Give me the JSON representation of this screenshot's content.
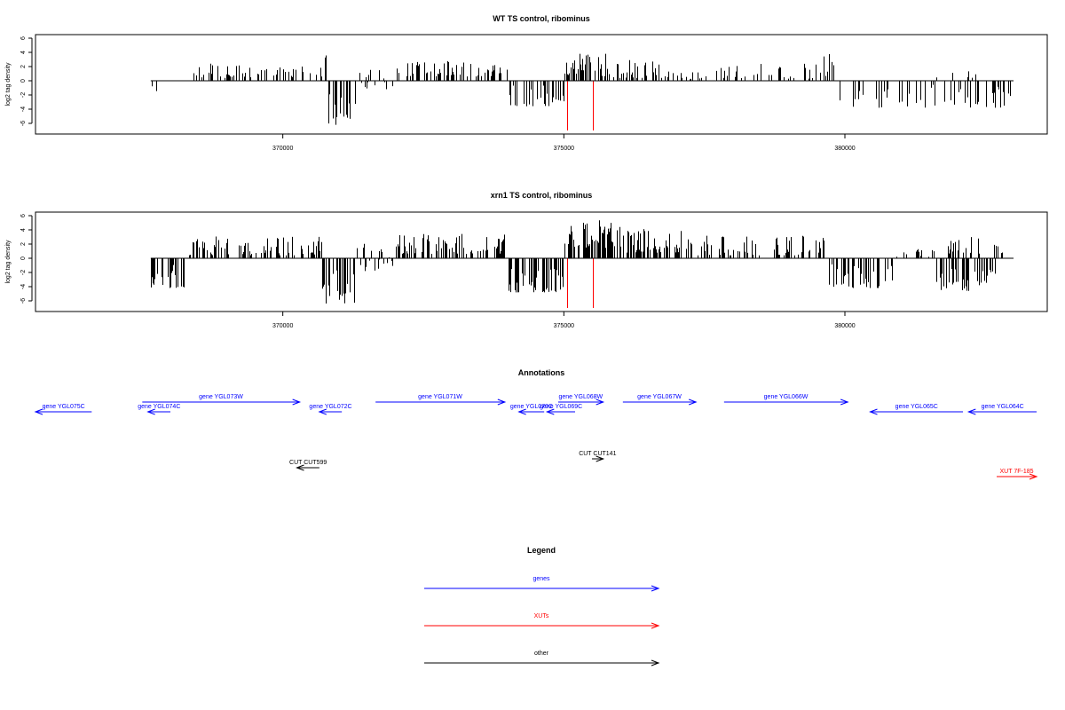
{
  "chart_data": [
    {
      "type": "bar",
      "title": "WT TS control, ribominus",
      "xlabel": "",
      "ylabel": "log2 tag density",
      "xlim": [
        365600,
        383600
      ],
      "ylim": [
        -7.5,
        6.5
      ],
      "xticks": [
        370000,
        375000,
        380000
      ],
      "xtick_labels": [
        "370000",
        "375000",
        "380000"
      ],
      "yticks": [
        -6,
        -4,
        -2,
        0,
        2,
        4,
        6
      ],
      "ytick_labels": [
        "-6",
        "-4",
        "-2",
        "0",
        "2",
        "4",
        "6"
      ],
      "grid": false,
      "highlight_lines": [
        375050,
        375510
      ],
      "highlight_color": "#ff0000",
      "bar_color": "#000000",
      "regions": [
        {
          "start": 367650,
          "end": 367800,
          "lo": -1.6,
          "hi": -0.6,
          "count": 4
        },
        {
          "start": 368300,
          "end": 369300,
          "lo": 0.4,
          "hi": 2.6,
          "count": 30
        },
        {
          "start": 369300,
          "end": 370600,
          "lo": 0.3,
          "hi": 2.0,
          "count": 26
        },
        {
          "start": 370600,
          "end": 370850,
          "lo": 0.6,
          "hi": 4.0,
          "count": 8
        },
        {
          "start": 370750,
          "end": 371300,
          "lo": -6.2,
          "hi": -1.0,
          "count": 16
        },
        {
          "start": 371300,
          "end": 372000,
          "lo": -1.2,
          "hi": 1.6,
          "count": 16
        },
        {
          "start": 372000,
          "end": 373300,
          "lo": 0.6,
          "hi": 2.8,
          "count": 34
        },
        {
          "start": 373300,
          "end": 374000,
          "lo": 0.6,
          "hi": 2.4,
          "count": 18
        },
        {
          "start": 374000,
          "end": 375000,
          "lo": -3.6,
          "hi": -0.6,
          "count": 30
        },
        {
          "start": 375000,
          "end": 375800,
          "lo": 0.6,
          "hi": 4.0,
          "count": 40
        },
        {
          "start": 375800,
          "end": 376900,
          "lo": 0.4,
          "hi": 3.0,
          "count": 34
        },
        {
          "start": 376900,
          "end": 377500,
          "lo": 0.2,
          "hi": 1.5,
          "count": 12
        },
        {
          "start": 377500,
          "end": 379500,
          "lo": 0.3,
          "hi": 2.4,
          "count": 34
        },
        {
          "start": 379500,
          "end": 379800,
          "lo": 0.5,
          "hi": 4.0,
          "count": 8
        },
        {
          "start": 379900,
          "end": 383000,
          "lo": -3.8,
          "hi": -0.4,
          "count": 48
        },
        {
          "start": 381600,
          "end": 382800,
          "lo": 0.3,
          "hi": 2.2,
          "count": 6
        }
      ]
    },
    {
      "type": "bar",
      "title": "xrn1 TS control, ribominus",
      "xlabel": "",
      "ylabel": "log2 tag density",
      "xlim": [
        365600,
        383600
      ],
      "ylim": [
        -7.5,
        6.5
      ],
      "xticks": [
        370000,
        375000,
        380000
      ],
      "xtick_labels": [
        "370000",
        "375000",
        "380000"
      ],
      "yticks": [
        -6,
        -4,
        -2,
        0,
        2,
        4,
        6
      ],
      "ytick_labels": [
        "-6",
        "-4",
        "-2",
        "0",
        "2",
        "4",
        "6"
      ],
      "grid": false,
      "highlight_lines": [
        375050,
        375510
      ],
      "highlight_color": "#ff0000",
      "bar_color": "#000000",
      "regions": [
        {
          "start": 367650,
          "end": 368300,
          "lo": -4.2,
          "hi": -0.6,
          "count": 26
        },
        {
          "start": 368300,
          "end": 370700,
          "lo": 0.4,
          "hi": 3.2,
          "count": 80
        },
        {
          "start": 370700,
          "end": 371300,
          "lo": -6.4,
          "hi": -1.0,
          "count": 24
        },
        {
          "start": 371300,
          "end": 372000,
          "lo": -1.8,
          "hi": 2.4,
          "count": 24
        },
        {
          "start": 372000,
          "end": 374000,
          "lo": 0.6,
          "hi": 3.6,
          "count": 80
        },
        {
          "start": 374000,
          "end": 375000,
          "lo": -4.8,
          "hi": -1.2,
          "count": 60
        },
        {
          "start": 375000,
          "end": 376000,
          "lo": 1.4,
          "hi": 5.6,
          "count": 70
        },
        {
          "start": 376000,
          "end": 377100,
          "lo": 0.8,
          "hi": 4.6,
          "count": 60
        },
        {
          "start": 377100,
          "end": 379700,
          "lo": 0.4,
          "hi": 3.2,
          "count": 70
        },
        {
          "start": 379700,
          "end": 380900,
          "lo": -4.2,
          "hi": -0.8,
          "count": 40
        },
        {
          "start": 380900,
          "end": 381600,
          "lo": 0.2,
          "hi": 1.4,
          "count": 16
        },
        {
          "start": 381600,
          "end": 382700,
          "lo": -4.6,
          "hi": -0.8,
          "count": 36
        },
        {
          "start": 381800,
          "end": 382800,
          "lo": 0.5,
          "hi": 3.0,
          "count": 20
        }
      ]
    }
  ],
  "annotations": {
    "title": "Annotations",
    "xlim": [
      365600,
      383600
    ],
    "features": [
      {
        "label": "gene YGL075C",
        "start": 365600,
        "end": 366600,
        "strand": "-",
        "row": 1,
        "color": "#0000ff"
      },
      {
        "label": "gene YGL074C",
        "start": 367600,
        "end": 368000,
        "strand": "-",
        "row": 1,
        "color": "#0000ff"
      },
      {
        "label": "gene YGL073W",
        "start": 367500,
        "end": 370300,
        "strand": "+",
        "row": 0,
        "color": "#0000ff"
      },
      {
        "label": "gene YGL072C",
        "start": 370650,
        "end": 371050,
        "strand": "-",
        "row": 1,
        "color": "#0000ff"
      },
      {
        "label": "gene YGL071W",
        "start": 371650,
        "end": 373950,
        "strand": "+",
        "row": 0,
        "color": "#0000ff"
      },
      {
        "label": "gene YGL070C",
        "start": 374200,
        "end": 374650,
        "strand": "-",
        "row": 1,
        "color": "#0000ff"
      },
      {
        "label": "gene YGL069C",
        "start": 374700,
        "end": 375200,
        "strand": "-",
        "row": 1,
        "color": "#0000ff"
      },
      {
        "label": "gene YGL068W",
        "start": 374900,
        "end": 375700,
        "strand": "+",
        "row": 0,
        "color": "#0000ff"
      },
      {
        "label": "gene YGL067W",
        "start": 376050,
        "end": 377350,
        "strand": "+",
        "row": 0,
        "color": "#0000ff"
      },
      {
        "label": "gene YGL066W",
        "start": 377850,
        "end": 380050,
        "strand": "+",
        "row": 0,
        "color": "#0000ff"
      },
      {
        "label": "gene YGL065C",
        "start": 380450,
        "end": 382100,
        "strand": "-",
        "row": 1,
        "color": "#0000ff"
      },
      {
        "label": "gene YGL064C",
        "start": 382200,
        "end": 384100,
        "strand": "-",
        "row": 1,
        "color": "#0000ff"
      },
      {
        "label": "CUT CUT599",
        "start": 370250,
        "end": 370650,
        "strand": "-",
        "row": 2,
        "color": "#000000"
      },
      {
        "label": "CUT CUT141",
        "start": 375500,
        "end": 375700,
        "strand": "+",
        "row": 3,
        "color": "#000000"
      },
      {
        "label": "XUT 7F-185",
        "start": 382700,
        "end": 383450,
        "strand": "+",
        "row": 4,
        "color": "#ff0000"
      }
    ]
  },
  "legend": {
    "title": "Legend",
    "items": [
      {
        "label": "genes",
        "color": "#0000ff"
      },
      {
        "label": "XUTs",
        "color": "#ff0000"
      },
      {
        "label": "other",
        "color": "#000000"
      }
    ]
  }
}
